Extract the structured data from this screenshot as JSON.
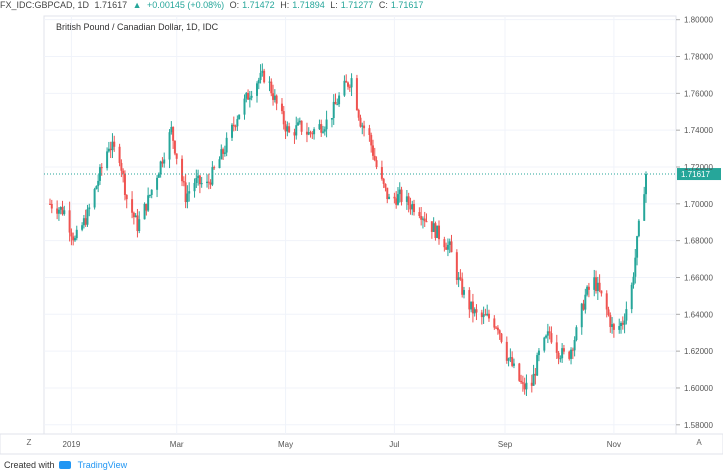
{
  "header": {
    "symbol": "FX_IDC:GBPCAD, 1D",
    "last": "1.71617",
    "change_icon": "triangle-up-icon",
    "change": "+0.00145 (+0.08%)",
    "open_label": "O:",
    "open": "1.71472",
    "high_label": "H:",
    "high": "1.71894",
    "low_label": "L:",
    "low": "1.71277",
    "close_label": "C:",
    "close": "1.71617"
  },
  "footer": {
    "created": "Created with",
    "brand": "TradingView",
    "brand_icon": "tradingview-logo-icon"
  },
  "controls": {
    "left": "Z",
    "right": "A"
  },
  "chart_data": {
    "type": "candlestick",
    "title": "British Pound / Canadian Dollar, 1D, IDC",
    "x_tick_labels": [
      "2019",
      "Mar",
      "May",
      "Jul",
      "Sep",
      "Nov"
    ],
    "y_tick_labels": [
      "1.58000",
      "1.60000",
      "1.62000",
      "1.64000",
      "1.66000",
      "1.68000",
      "1.70000",
      "1.72000",
      "1.74000",
      "1.76000",
      "1.78000",
      "1.80000"
    ],
    "y_tick_values": [
      1.58,
      1.6,
      1.62,
      1.64,
      1.66,
      1.68,
      1.7,
      1.72,
      1.74,
      1.76,
      1.78,
      1.8
    ],
    "ylim": [
      1.575,
      1.802
    ],
    "x_range": [
      "2018-12-20",
      "2019-11-19"
    ],
    "x_tick_dates": [
      "2019-01-01",
      "2019-03-01",
      "2019-05-01",
      "2019-07-01",
      "2019-09-01",
      "2019-11-01"
    ],
    "last_price": 1.71617,
    "last_price_label": "1.71617",
    "colors": {
      "up": "#26a69a",
      "down": "#ef5350",
      "price_line": "#26a69a",
      "grid": "#f0f3fa"
    },
    "close_path": [
      {
        "date": "2018-12-20",
        "close": 1.7
      },
      {
        "date": "2018-12-28",
        "close": 1.696
      },
      {
        "date": "2019-01-03",
        "close": 1.68
      },
      {
        "date": "2019-01-10",
        "close": 1.694
      },
      {
        "date": "2019-01-15",
        "close": 1.71
      },
      {
        "date": "2019-01-22",
        "close": 1.732
      },
      {
        "date": "2019-01-28",
        "close": 1.726
      },
      {
        "date": "2019-02-01",
        "close": 1.703
      },
      {
        "date": "2019-02-07",
        "close": 1.688
      },
      {
        "date": "2019-02-13",
        "close": 1.702
      },
      {
        "date": "2019-02-20",
        "close": 1.722
      },
      {
        "date": "2019-02-26",
        "close": 1.74
      },
      {
        "date": "2019-03-01",
        "close": 1.726
      },
      {
        "date": "2019-03-06",
        "close": 1.704
      },
      {
        "date": "2019-03-11",
        "close": 1.712
      },
      {
        "date": "2019-03-18",
        "close": 1.71
      },
      {
        "date": "2019-03-22",
        "close": 1.718
      },
      {
        "date": "2019-03-28",
        "close": 1.73
      },
      {
        "date": "2019-04-04",
        "close": 1.748
      },
      {
        "date": "2019-04-09",
        "close": 1.757
      },
      {
        "date": "2019-04-14",
        "close": 1.766
      },
      {
        "date": "2019-04-20",
        "close": 1.77
      },
      {
        "date": "2019-04-27",
        "close": 1.751
      },
      {
        "date": "2019-05-03",
        "close": 1.738
      },
      {
        "date": "2019-05-09",
        "close": 1.742
      },
      {
        "date": "2019-05-14",
        "close": 1.738
      },
      {
        "date": "2019-05-20",
        "close": 1.742
      },
      {
        "date": "2019-05-25",
        "close": 1.745
      },
      {
        "date": "2019-06-02",
        "close": 1.762
      },
      {
        "date": "2019-06-07",
        "close": 1.768
      },
      {
        "date": "2019-06-12",
        "close": 1.745
      },
      {
        "date": "2019-06-17",
        "close": 1.736
      },
      {
        "date": "2019-06-22",
        "close": 1.716
      },
      {
        "date": "2019-06-28",
        "close": 1.702
      },
      {
        "date": "2019-07-04",
        "close": 1.704
      },
      {
        "date": "2019-07-09",
        "close": 1.7
      },
      {
        "date": "2019-07-14",
        "close": 1.698
      },
      {
        "date": "2019-07-20",
        "close": 1.69
      },
      {
        "date": "2019-07-26",
        "close": 1.683
      },
      {
        "date": "2019-08-01",
        "close": 1.676
      },
      {
        "date": "2019-08-06",
        "close": 1.658
      },
      {
        "date": "2019-08-11",
        "close": 1.646
      },
      {
        "date": "2019-08-17",
        "close": 1.638
      },
      {
        "date": "2019-08-23",
        "close": 1.638
      },
      {
        "date": "2019-08-28",
        "close": 1.634
      },
      {
        "date": "2019-09-02",
        "close": 1.618
      },
      {
        "date": "2019-09-06",
        "close": 1.61
      },
      {
        "date": "2019-09-11",
        "close": 1.6
      },
      {
        "date": "2019-09-16",
        "close": 1.602
      },
      {
        "date": "2019-09-20",
        "close": 1.618
      },
      {
        "date": "2019-09-26",
        "close": 1.63
      },
      {
        "date": "2019-10-01",
        "close": 1.62
      },
      {
        "date": "2019-10-06",
        "close": 1.616
      },
      {
        "date": "2019-10-11",
        "close": 1.63
      },
      {
        "date": "2019-10-16",
        "close": 1.65
      },
      {
        "date": "2019-10-21",
        "close": 1.658
      },
      {
        "date": "2019-10-27",
        "close": 1.645
      },
      {
        "date": "2019-11-01",
        "close": 1.63
      },
      {
        "date": "2019-11-06",
        "close": 1.636
      },
      {
        "date": "2019-11-11",
        "close": 1.655
      },
      {
        "date": "2019-11-16",
        "close": 1.695
      },
      {
        "date": "2019-11-19",
        "close": 1.71617
      }
    ]
  }
}
